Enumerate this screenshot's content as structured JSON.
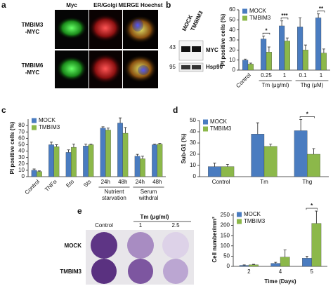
{
  "panel_a": {
    "panel": "a",
    "columns": [
      "Myc",
      "ER/Golgi",
      "MERGE Hoechst"
    ],
    "rows": [
      [
        "TMBIM3",
        "-MYC"
      ],
      [
        "TMBIM6",
        "-MYC"
      ]
    ]
  },
  "panel_b_blot": {
    "lanes": [
      "MOCK",
      "TMBIM3"
    ],
    "markers": [
      43,
      95
    ],
    "bands": [
      "MYC",
      "Hsp90"
    ]
  },
  "panel_e_plates": {
    "panel": "e",
    "treatment": "Tm (μg/ml)",
    "doses": [
      "Control",
      "1",
      "2.5"
    ],
    "rows": [
      "MOCK",
      "TMBIM3"
    ]
  },
  "chart_data": [
    {
      "type": "bar",
      "panel": "b",
      "ylabel": "PI positive cells (%)",
      "categories": [
        "Control",
        "0.25",
        "1",
        "0.1",
        "1"
      ],
      "groups": [
        {
          "label": "Tm (μg/ml)",
          "span": [
            1,
            2
          ]
        },
        {
          "label": "Thg (μM)",
          "span": [
            3,
            4
          ]
        }
      ],
      "rotate_labels": [
        true,
        false,
        false,
        false,
        false
      ],
      "series": [
        {
          "name": "MOCK",
          "color": "#4a7cc0",
          "values": [
            10,
            31,
            44,
            43,
            52
          ],
          "errors": [
            1,
            3,
            5,
            9,
            4
          ]
        },
        {
          "name": "TMBIM3",
          "color": "#8cb84a",
          "values": [
            6,
            18,
            29,
            20,
            17
          ],
          "errors": [
            1,
            5,
            3,
            5,
            4
          ]
        }
      ],
      "annotations": [
        {
          "text": "*",
          "category": 1
        },
        {
          "text": "***",
          "category": 2
        },
        {
          "text": "**",
          "category": 4
        }
      ],
      "ylim": [
        0,
        60
      ],
      "yticks": [
        0,
        10,
        20,
        30,
        40,
        50,
        60
      ],
      "legend": "upper left"
    },
    {
      "type": "bar",
      "panel": "c",
      "ylabel": "PI positive cells (%)",
      "categories": [
        "Control",
        "TNFα",
        "Eto",
        "Sts",
        "24h",
        "48h",
        "24h",
        "48h"
      ],
      "groups": [
        {
          "label": [
            "Nutrient",
            "starvation"
          ],
          "span": [
            4,
            5
          ]
        },
        {
          "label": [
            "Serum",
            "withdral"
          ],
          "span": [
            6,
            7
          ]
        }
      ],
      "rotate_labels": [
        true,
        true,
        true,
        true,
        false,
        false,
        false,
        false
      ],
      "series": [
        {
          "name": "MOCK",
          "color": "#4a7cc0",
          "values": [
            10,
            50,
            38,
            48,
            76,
            84,
            32,
            50
          ],
          "errors": [
            2,
            4,
            4,
            3,
            2,
            8,
            3,
            1
          ]
        },
        {
          "name": "TMBIM3",
          "color": "#8cb84a",
          "values": [
            8,
            47,
            46,
            50,
            73,
            68,
            28,
            51
          ],
          "errors": [
            1,
            3,
            5,
            1,
            3,
            9,
            4,
            1
          ]
        }
      ],
      "ylim": [
        0,
        90
      ],
      "yticks": [
        0,
        10,
        20,
        30,
        40,
        50,
        60,
        70,
        80
      ],
      "legend": "upper left"
    },
    {
      "type": "bar",
      "panel": "d",
      "ylabel": "Sub-G1 (%)",
      "categories": [
        "Control",
        "Tm",
        "Thg"
      ],
      "series": [
        {
          "name": "MOCK",
          "color": "#4a7cc0",
          "values": [
            9,
            38,
            41
          ],
          "errors": [
            3,
            10,
            10
          ]
        },
        {
          "name": "TMBIM3",
          "color": "#8cb84a",
          "values": [
            9,
            27,
            20
          ],
          "errors": [
            2,
            2,
            5
          ]
        }
      ],
      "annotations": [
        {
          "text": "*",
          "category": 2
        }
      ],
      "ylim": [
        0,
        50
      ],
      "yticks": [
        0,
        10,
        20,
        30,
        40,
        50
      ],
      "legend": "upper left"
    },
    {
      "type": "bar",
      "ylabel": "Cell number/mm²",
      "xlabel": "Time (Days)",
      "categories": [
        "2",
        "4",
        "5"
      ],
      "series": [
        {
          "name": "MOCK",
          "color": "#4a7cc0",
          "values": [
            5,
            15,
            40
          ],
          "errors": [
            2,
            5,
            10
          ]
        },
        {
          "name": "TMBIM3",
          "color": "#8cb84a",
          "values": [
            8,
            45,
            210
          ],
          "errors": [
            2,
            35,
            60
          ]
        }
      ],
      "annotations": [
        {
          "text": "*",
          "category": 2
        }
      ],
      "ylim": [
        0,
        260
      ],
      "yticks": [
        0,
        50,
        100,
        150,
        200,
        250
      ],
      "legend": "upper left"
    }
  ]
}
